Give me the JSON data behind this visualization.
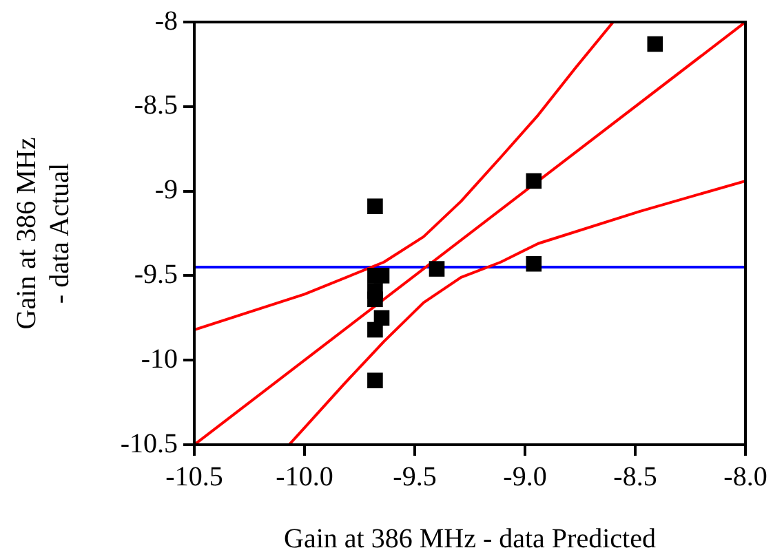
{
  "chart_data": {
    "type": "scatter",
    "xlabel": "Gain at 386 MHz - data Predicted",
    "ylabel": "Gain at 386 MHz - data Actual",
    "xlim": [
      -10.5,
      -8.0
    ],
    "xticks": [
      {
        "value": -10.5,
        "label": "-10.5"
      },
      {
        "value": -10,
        "label": "-10.0"
      },
      {
        "value": -9.5,
        "label": "-9.5"
      },
      {
        "value": -9,
        "label": "-9.0"
      },
      {
        "value": -8.5,
        "label": "-8.5"
      },
      {
        "value": -8,
        "label": "-8.0"
      }
    ],
    "ylim": [
      -10.5,
      -8
    ],
    "yticks": [
      -10.5,
      -10,
      -9.5,
      -9,
      -8.5,
      -8
    ],
    "grid": false,
    "legend": false,
    "ref_lines": [
      {
        "axis": "y",
        "value": -9.45,
        "color": "#0000ff"
      }
    ],
    "series": [
      {
        "marker": "square",
        "color": "#000000",
        "x": [
          -8.41,
          -8.96,
          -8.96,
          -9.4,
          -9.68,
          -9.68,
          -9.65,
          -9.68,
          -9.68,
          -9.65,
          -9.68,
          -9.68
        ],
        "values": [
          -8.13,
          -8.94,
          -9.43,
          -9.46,
          -9.09,
          -9.5,
          -9.5,
          -9.59,
          -9.64,
          -9.75,
          -9.82,
          -10.12
        ]
      },
      {
        "type": "line",
        "marker": "none",
        "color": "#ff0000",
        "x": [
          -10.5,
          -8.0
        ],
        "values": [
          -10.5,
          -8.0
        ]
      },
      {
        "type": "line",
        "marker": "none",
        "color": "#ff0000",
        "x": [
          -10.5,
          -10.0,
          -9.64,
          -9.46,
          -9.29,
          -9.11,
          -8.94,
          -8.77,
          -8.6
        ],
        "values": [
          -9.82,
          -9.61,
          -9.42,
          -9.27,
          -9.06,
          -8.8,
          -8.55,
          -8.27,
          -8.0
        ]
      },
      {
        "type": "line",
        "marker": "none",
        "color": "#ff0000",
        "x": [
          -10.07,
          -10.0,
          -9.82,
          -9.64,
          -9.46,
          -9.29,
          -9.11,
          -8.94,
          -8.48,
          -8.0
        ],
        "values": [
          -10.5,
          -10.4,
          -10.14,
          -9.89,
          -9.66,
          -9.51,
          -9.42,
          -9.31,
          -9.12,
          -8.94
        ]
      }
    ]
  }
}
